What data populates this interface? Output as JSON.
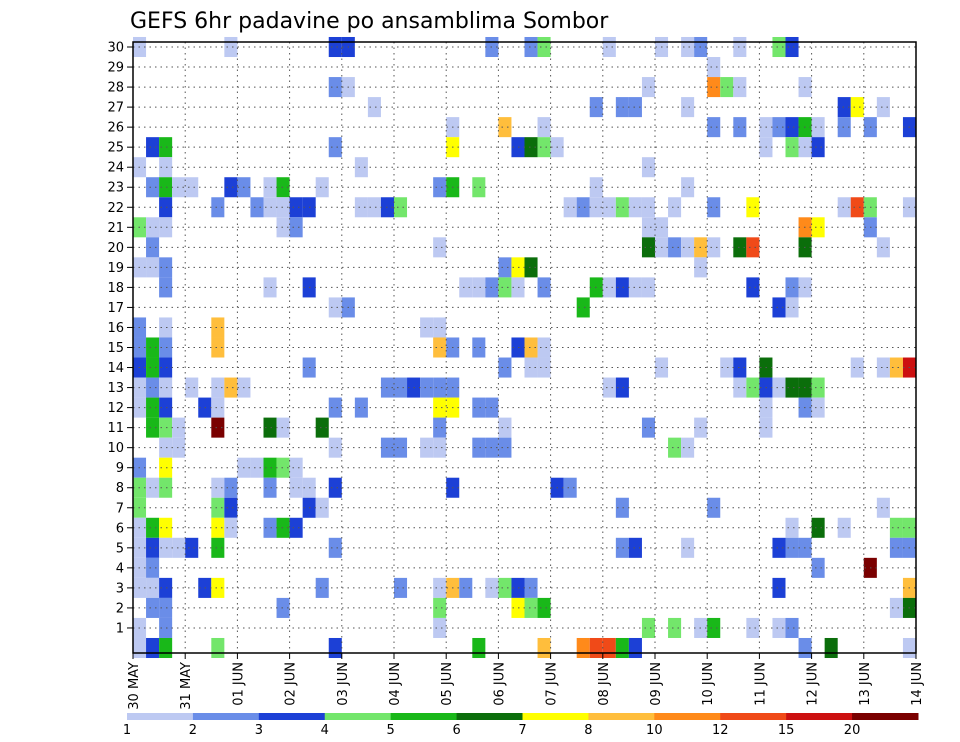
{
  "chart_data": {
    "type": "heatmap",
    "title": "GEFS 6hr padavine po ansamblima Sombor",
    "xlabel": "",
    "ylabel": "",
    "y_ticks": [
      "1",
      "2",
      "3",
      "4",
      "5",
      "6",
      "7",
      "8",
      "9",
      "10",
      "11",
      "12",
      "13",
      "14",
      "15",
      "16",
      "17",
      "18",
      "19",
      "20",
      "21",
      "22",
      "23",
      "24",
      "25",
      "26",
      "27",
      "28",
      "29",
      "30"
    ],
    "x_ticks": [
      "30 MAY",
      "31 MAY",
      "01 JUN",
      "02 JUN",
      "03 JUN",
      "04 JUN",
      "05 JUN",
      "06 JUN",
      "07 JUN",
      "08 JUN",
      "09 JUN",
      "10 JUN",
      "11 JUN",
      "12 JUN",
      "13 JUN",
      "14 JUN"
    ],
    "ylim": [
      0,
      30
    ],
    "time_steps": 61,
    "grid": true,
    "colorbar": {
      "levels": [
        "1",
        "2",
        "3",
        "4",
        "5",
        "6",
        "7",
        "8",
        "10",
        "12",
        "15",
        "20"
      ],
      "colors": [
        "#bdc9f2",
        "#6a8de8",
        "#1c40d6",
        "#73e66b",
        "#19b819",
        "#0b6e0b",
        "#ffff00",
        "#ffbe3c",
        "#ff8a1a",
        "#f04a18",
        "#cc1010",
        "#7a0000"
      ]
    },
    "cells": [
      [
        0,
        30,
        1
      ],
      [
        7,
        30,
        1
      ],
      [
        15,
        30,
        3
      ],
      [
        16,
        30,
        3
      ],
      [
        27,
        30,
        2
      ],
      [
        30,
        30,
        2
      ],
      [
        31,
        30,
        4
      ],
      [
        36,
        30,
        1
      ],
      [
        40,
        30,
        1
      ],
      [
        42,
        30,
        1
      ],
      [
        43,
        30,
        2
      ],
      [
        46,
        30,
        1
      ],
      [
        49,
        30,
        4
      ],
      [
        50,
        30,
        3
      ],
      [
        44,
        29,
        1
      ],
      [
        15,
        28,
        2
      ],
      [
        16,
        28,
        1
      ],
      [
        39,
        28,
        1
      ],
      [
        44,
        28,
        9
      ],
      [
        45,
        28,
        4
      ],
      [
        46,
        28,
        1
      ],
      [
        51,
        28,
        1
      ],
      [
        18,
        27,
        1
      ],
      [
        35,
        27,
        2
      ],
      [
        37,
        27,
        2
      ],
      [
        38,
        27,
        2
      ],
      [
        42,
        27,
        1
      ],
      [
        54,
        27,
        3
      ],
      [
        55,
        27,
        7
      ],
      [
        57,
        27,
        1
      ],
      [
        24,
        26,
        1
      ],
      [
        28,
        26,
        8
      ],
      [
        31,
        26,
        1
      ],
      [
        44,
        26,
        2
      ],
      [
        46,
        26,
        2
      ],
      [
        48,
        26,
        1
      ],
      [
        49,
        26,
        2
      ],
      [
        50,
        26,
        3
      ],
      [
        51,
        26,
        5
      ],
      [
        52,
        26,
        1
      ],
      [
        54,
        26,
        2
      ],
      [
        56,
        26,
        2
      ],
      [
        59,
        26,
        3
      ],
      [
        1,
        25,
        3
      ],
      [
        2,
        25,
        5
      ],
      [
        15,
        25,
        2
      ],
      [
        24,
        25,
        7
      ],
      [
        29,
        25,
        3
      ],
      [
        30,
        25,
        6
      ],
      [
        31,
        25,
        4
      ],
      [
        32,
        25,
        1
      ],
      [
        48,
        25,
        1
      ],
      [
        50,
        25,
        4
      ],
      [
        51,
        25,
        1
      ],
      [
        52,
        25,
        3
      ],
      [
        0,
        24,
        1
      ],
      [
        2,
        24,
        1
      ],
      [
        17,
        24,
        1
      ],
      [
        39,
        24,
        1
      ],
      [
        1,
        23,
        2
      ],
      [
        2,
        23,
        5
      ],
      [
        3,
        23,
        1
      ],
      [
        4,
        23,
        1
      ],
      [
        7,
        23,
        3
      ],
      [
        8,
        23,
        2
      ],
      [
        10,
        23,
        1
      ],
      [
        11,
        23,
        5
      ],
      [
        14,
        23,
        1
      ],
      [
        23,
        23,
        2
      ],
      [
        24,
        23,
        5
      ],
      [
        26,
        23,
        4
      ],
      [
        35,
        23,
        1
      ],
      [
        42,
        23,
        1
      ],
      [
        2,
        22,
        3
      ],
      [
        6,
        22,
        2
      ],
      [
        9,
        22,
        2
      ],
      [
        10,
        22,
        1
      ],
      [
        11,
        22,
        1
      ],
      [
        12,
        22,
        3
      ],
      [
        13,
        22,
        3
      ],
      [
        17,
        22,
        1
      ],
      [
        18,
        22,
        1
      ],
      [
        19,
        22,
        3
      ],
      [
        20,
        22,
        4
      ],
      [
        33,
        22,
        1
      ],
      [
        34,
        22,
        2
      ],
      [
        35,
        22,
        1
      ],
      [
        36,
        22,
        1
      ],
      [
        37,
        22,
        4
      ],
      [
        38,
        22,
        1
      ],
      [
        39,
        22,
        1
      ],
      [
        41,
        22,
        1
      ],
      [
        44,
        22,
        2
      ],
      [
        47,
        22,
        7
      ],
      [
        54,
        22,
        1
      ],
      [
        55,
        22,
        10
      ],
      [
        56,
        22,
        4
      ],
      [
        59,
        22,
        1
      ],
      [
        60,
        22,
        2
      ],
      [
        0,
        21,
        4
      ],
      [
        1,
        21,
        1
      ],
      [
        2,
        21,
        1
      ],
      [
        11,
        21,
        1
      ],
      [
        12,
        21,
        2
      ],
      [
        39,
        21,
        1
      ],
      [
        40,
        21,
        1
      ],
      [
        51,
        21,
        9
      ],
      [
        52,
        21,
        7
      ],
      [
        56,
        21,
        2
      ],
      [
        1,
        20,
        2
      ],
      [
        23,
        20,
        1
      ],
      [
        39,
        20,
        6
      ],
      [
        40,
        20,
        1
      ],
      [
        41,
        20,
        2
      ],
      [
        42,
        20,
        1
      ],
      [
        43,
        20,
        8
      ],
      [
        44,
        20,
        1
      ],
      [
        46,
        20,
        6
      ],
      [
        47,
        20,
        10
      ],
      [
        51,
        20,
        6
      ],
      [
        57,
        20,
        1
      ],
      [
        0,
        19,
        1
      ],
      [
        1,
        19,
        1
      ],
      [
        2,
        19,
        2
      ],
      [
        28,
        19,
        2
      ],
      [
        29,
        19,
        7
      ],
      [
        30,
        19,
        6
      ],
      [
        43,
        19,
        1
      ],
      [
        60,
        19,
        6
      ],
      [
        2,
        18,
        2
      ],
      [
        10,
        18,
        1
      ],
      [
        13,
        18,
        3
      ],
      [
        25,
        18,
        1
      ],
      [
        26,
        18,
        1
      ],
      [
        27,
        18,
        2
      ],
      [
        28,
        18,
        4
      ],
      [
        29,
        18,
        1
      ],
      [
        31,
        18,
        2
      ],
      [
        35,
        18,
        5
      ],
      [
        36,
        18,
        1
      ],
      [
        37,
        18,
        3
      ],
      [
        38,
        18,
        1
      ],
      [
        39,
        18,
        1
      ],
      [
        47,
        18,
        3
      ],
      [
        50,
        18,
        2
      ],
      [
        51,
        18,
        1
      ],
      [
        15,
        17,
        1
      ],
      [
        16,
        17,
        2
      ],
      [
        34,
        17,
        5
      ],
      [
        49,
        17,
        3
      ],
      [
        50,
        17,
        1
      ],
      [
        0,
        16,
        2
      ],
      [
        2,
        16,
        1
      ],
      [
        6,
        16,
        8
      ],
      [
        22,
        16,
        1
      ],
      [
        23,
        16,
        1
      ],
      [
        61,
        16,
        3
      ],
      [
        0,
        15,
        2
      ],
      [
        1,
        15,
        5
      ],
      [
        2,
        15,
        2
      ],
      [
        6,
        15,
        8
      ],
      [
        23,
        15,
        8
      ],
      [
        24,
        15,
        2
      ],
      [
        26,
        15,
        2
      ],
      [
        29,
        15,
        3
      ],
      [
        30,
        15,
        8
      ],
      [
        31,
        15,
        1
      ],
      [
        61,
        15,
        3
      ],
      [
        0,
        14,
        3
      ],
      [
        1,
        14,
        5
      ],
      [
        2,
        14,
        3
      ],
      [
        13,
        14,
        2
      ],
      [
        28,
        14,
        2
      ],
      [
        30,
        14,
        1
      ],
      [
        31,
        14,
        1
      ],
      [
        40,
        14,
        1
      ],
      [
        45,
        14,
        1
      ],
      [
        46,
        14,
        3
      ],
      [
        48,
        14,
        6
      ],
      [
        55,
        14,
        1
      ],
      [
        57,
        14,
        1
      ],
      [
        58,
        14,
        8
      ],
      [
        59,
        14,
        11
      ],
      [
        0,
        13,
        1
      ],
      [
        1,
        13,
        2
      ],
      [
        2,
        13,
        1
      ],
      [
        4,
        13,
        1
      ],
      [
        6,
        13,
        1
      ],
      [
        7,
        13,
        8
      ],
      [
        8,
        13,
        1
      ],
      [
        19,
        13,
        2
      ],
      [
        20,
        13,
        2
      ],
      [
        21,
        13,
        3
      ],
      [
        22,
        13,
        2
      ],
      [
        23,
        13,
        2
      ],
      [
        24,
        13,
        2
      ],
      [
        36,
        13,
        1
      ],
      [
        37,
        13,
        3
      ],
      [
        46,
        13,
        1
      ],
      [
        47,
        13,
        4
      ],
      [
        48,
        13,
        3
      ],
      [
        49,
        13,
        1
      ],
      [
        50,
        13,
        6
      ],
      [
        51,
        13,
        6
      ],
      [
        52,
        13,
        4
      ],
      [
        0,
        12,
        1
      ],
      [
        1,
        12,
        5
      ],
      [
        2,
        12,
        3
      ],
      [
        5,
        12,
        3
      ],
      [
        6,
        12,
        1
      ],
      [
        15,
        12,
        2
      ],
      [
        17,
        12,
        2
      ],
      [
        23,
        12,
        7
      ],
      [
        24,
        12,
        7
      ],
      [
        26,
        12,
        2
      ],
      [
        27,
        12,
        2
      ],
      [
        48,
        12,
        1
      ],
      [
        51,
        12,
        2
      ],
      [
        52,
        12,
        1
      ],
      [
        1,
        11,
        5
      ],
      [
        2,
        11,
        4
      ],
      [
        3,
        11,
        1
      ],
      [
        6,
        11,
        12
      ],
      [
        10,
        11,
        6
      ],
      [
        11,
        11,
        1
      ],
      [
        14,
        11,
        6
      ],
      [
        23,
        11,
        2
      ],
      [
        28,
        11,
        1
      ],
      [
        39,
        11,
        2
      ],
      [
        43,
        11,
        1
      ],
      [
        48,
        11,
        1
      ],
      [
        2,
        10,
        1
      ],
      [
        3,
        10,
        1
      ],
      [
        15,
        10,
        1
      ],
      [
        19,
        10,
        2
      ],
      [
        20,
        10,
        2
      ],
      [
        22,
        10,
        1
      ],
      [
        23,
        10,
        1
      ],
      [
        26,
        10,
        2
      ],
      [
        27,
        10,
        2
      ],
      [
        28,
        10,
        2
      ],
      [
        41,
        10,
        4
      ],
      [
        42,
        10,
        1
      ],
      [
        0,
        9,
        2
      ],
      [
        2,
        9,
        7
      ],
      [
        8,
        9,
        1
      ],
      [
        9,
        9,
        1
      ],
      [
        10,
        9,
        5
      ],
      [
        11,
        9,
        4
      ],
      [
        12,
        9,
        1
      ],
      [
        0,
        8,
        4
      ],
      [
        1,
        8,
        1
      ],
      [
        2,
        8,
        4
      ],
      [
        6,
        8,
        1
      ],
      [
        7,
        8,
        2
      ],
      [
        10,
        8,
        2
      ],
      [
        12,
        8,
        1
      ],
      [
        13,
        8,
        1
      ],
      [
        15,
        8,
        3
      ],
      [
        24,
        8,
        3
      ],
      [
        32,
        8,
        3
      ],
      [
        33,
        8,
        2
      ],
      [
        0,
        7,
        4
      ],
      [
        6,
        7,
        4
      ],
      [
        7,
        7,
        3
      ],
      [
        13,
        7,
        3
      ],
      [
        14,
        7,
        1
      ],
      [
        37,
        7,
        2
      ],
      [
        44,
        7,
        2
      ],
      [
        57,
        7,
        1
      ],
      [
        0,
        6,
        1
      ],
      [
        1,
        6,
        5
      ],
      [
        2,
        6,
        7
      ],
      [
        6,
        6,
        7
      ],
      [
        7,
        6,
        1
      ],
      [
        10,
        6,
        2
      ],
      [
        11,
        6,
        5
      ],
      [
        12,
        6,
        3
      ],
      [
        50,
        6,
        1
      ],
      [
        52,
        6,
        6
      ],
      [
        54,
        6,
        1
      ],
      [
        58,
        6,
        4
      ],
      [
        59,
        6,
        4
      ],
      [
        0,
        5,
        1
      ],
      [
        1,
        5,
        3
      ],
      [
        2,
        5,
        1
      ],
      [
        3,
        5,
        1
      ],
      [
        4,
        5,
        3
      ],
      [
        6,
        5,
        5
      ],
      [
        15,
        5,
        2
      ],
      [
        37,
        5,
        2
      ],
      [
        38,
        5,
        3
      ],
      [
        42,
        5,
        1
      ],
      [
        49,
        5,
        3
      ],
      [
        50,
        5,
        2
      ],
      [
        51,
        5,
        2
      ],
      [
        58,
        5,
        2
      ],
      [
        59,
        5,
        2
      ],
      [
        0,
        4,
        1
      ],
      [
        1,
        4,
        2
      ],
      [
        52,
        4,
        2
      ],
      [
        56,
        4,
        12
      ],
      [
        0,
        3,
        1
      ],
      [
        1,
        3,
        1
      ],
      [
        2,
        3,
        3
      ],
      [
        5,
        3,
        3
      ],
      [
        6,
        3,
        7
      ],
      [
        14,
        3,
        2
      ],
      [
        20,
        3,
        2
      ],
      [
        23,
        3,
        1
      ],
      [
        24,
        3,
        8
      ],
      [
        25,
        3,
        2
      ],
      [
        27,
        3,
        1
      ],
      [
        28,
        3,
        4
      ],
      [
        29,
        3,
        3
      ],
      [
        30,
        3,
        2
      ],
      [
        49,
        3,
        3
      ],
      [
        59,
        3,
        8
      ],
      [
        60,
        3,
        12
      ],
      [
        1,
        2,
        2
      ],
      [
        2,
        2,
        2
      ],
      [
        11,
        2,
        2
      ],
      [
        23,
        2,
        4
      ],
      [
        29,
        2,
        7
      ],
      [
        30,
        2,
        4
      ],
      [
        31,
        2,
        5
      ],
      [
        58,
        2,
        1
      ],
      [
        59,
        2,
        6
      ],
      [
        60,
        2,
        6
      ],
      [
        0,
        1,
        1
      ],
      [
        2,
        1,
        2
      ],
      [
        23,
        1,
        1
      ],
      [
        39,
        1,
        4
      ],
      [
        41,
        1,
        4
      ],
      [
        43,
        1,
        1
      ],
      [
        44,
        1,
        5
      ],
      [
        47,
        1,
        1
      ],
      [
        49,
        1,
        1
      ],
      [
        50,
        1,
        2
      ],
      [
        0,
        0,
        1
      ],
      [
        1,
        0,
        3
      ],
      [
        2,
        0,
        5
      ],
      [
        6,
        0,
        4
      ],
      [
        15,
        0,
        3
      ],
      [
        26,
        0,
        5
      ],
      [
        31,
        0,
        8
      ],
      [
        34,
        0,
        9
      ],
      [
        35,
        0,
        10
      ],
      [
        36,
        0,
        10
      ],
      [
        37,
        0,
        5
      ],
      [
        38,
        0,
        3
      ],
      [
        51,
        0,
        2
      ],
      [
        53,
        0,
        6
      ],
      [
        59,
        0,
        1
      ]
    ]
  }
}
